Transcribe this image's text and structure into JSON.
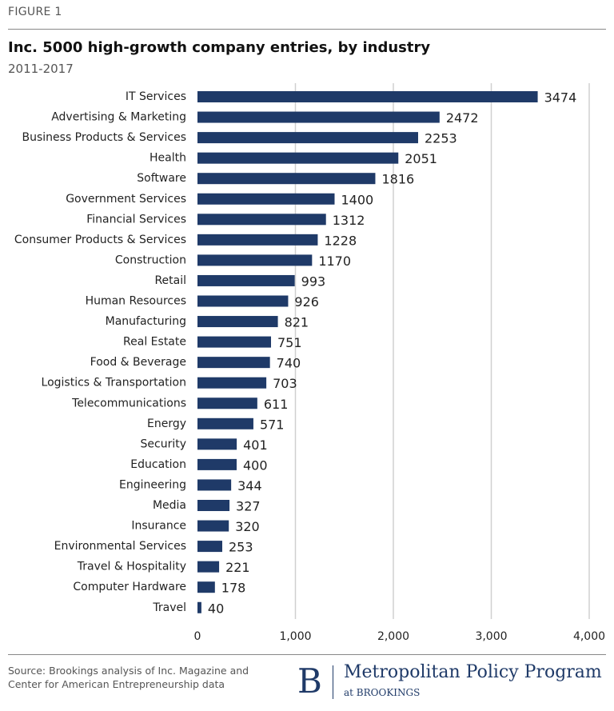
{
  "figure_label": "FIGURE 1",
  "title": "Inc. 5000 high-growth company entries, by industry",
  "subtitle": "2011-2017",
  "source": {
    "line1": "Source: Brookings analysis of Inc. Magazine and",
    "line2": "Center for American Entrepreneurship data"
  },
  "logo": {
    "mark": "B",
    "name": "Metropolitan Policy Program",
    "sub": "at BROOKINGS"
  },
  "colors": {
    "bar": "#1f3a68",
    "grid": "#d0d0d0",
    "text": "#222222"
  },
  "chart_data": {
    "type": "bar",
    "orientation": "horizontal",
    "categories": [
      "IT Services",
      "Advertising & Marketing",
      "Business Products & Services",
      "Health",
      "Software",
      "Government Services",
      "Financial Services",
      "Consumer Products & Services",
      "Construction",
      "Retail",
      "Human Resources",
      "Manufacturing",
      "Real Estate",
      "Food & Beverage",
      "Logistics & Transportation",
      "Telecommunications",
      "Energy",
      "Security",
      "Education",
      "Engineering",
      "Media",
      "Insurance",
      "Environmental Services",
      "Travel & Hospitality",
      "Computer Hardware",
      "Travel"
    ],
    "values": [
      3474,
      2472,
      2253,
      2051,
      1816,
      1400,
      1312,
      1228,
      1170,
      993,
      926,
      821,
      751,
      740,
      703,
      611,
      571,
      401,
      400,
      344,
      327,
      320,
      253,
      221,
      178,
      40
    ],
    "xlim": [
      0,
      4000
    ],
    "xticks": [
      0,
      1000,
      2000,
      3000,
      4000
    ],
    "xtick_labels": [
      "0",
      "1,000",
      "2,000",
      "3,000",
      "4,000"
    ],
    "grid": true,
    "data_labels": true
  }
}
